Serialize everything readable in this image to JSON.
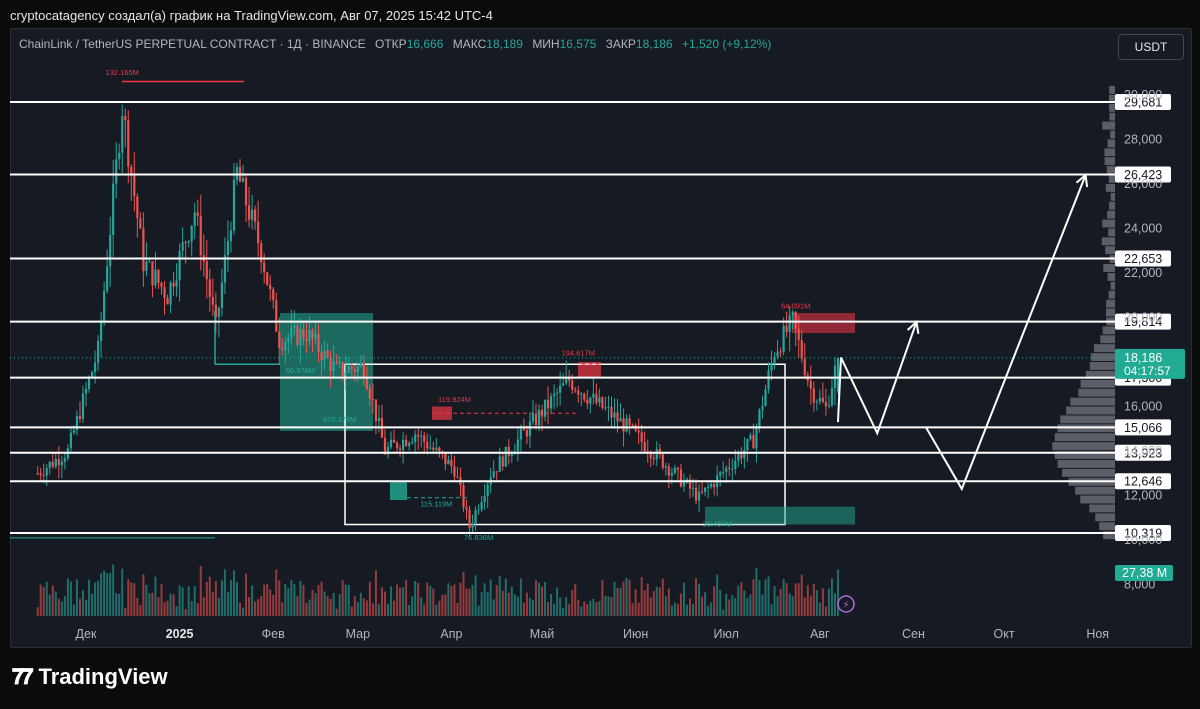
{
  "header": {
    "text": "cryptocatagency создал(а) график на TradingView.com, Авг 07, 2025 15:42 UTC-4"
  },
  "info": {
    "title": "ChainLink / TetherUS PERPETUAL CONTRACT · 1Д · BINANCE",
    "o_label": "ОТКР",
    "o_val": "16,666",
    "h_label": "МАКС",
    "h_val": "18,189",
    "l_label": "МИН",
    "l_val": "16,575",
    "c_label": "ЗАКР",
    "c_val": "18,186",
    "change": "+1,520 (+9,12%)"
  },
  "currency_button": "USDT",
  "brand": {
    "name": "TradingView"
  },
  "colors": {
    "up": "#26a69a",
    "down": "#ef5350",
    "bg": "#151a23",
    "line": "#ffffff",
    "zone_red": "#f23645",
    "zone_green": "#22ab94"
  },
  "chart_data": {
    "type": "candlestick",
    "symbol": "LINKUSDT.P",
    "timeframe": "1D",
    "y_axis_ticks": [
      "30,000",
      "28,000",
      "26,000",
      "24,000",
      "22,000",
      "20,000",
      "18,000",
      "16,000",
      "14,000",
      "12,000",
      "10,000",
      "8,000"
    ],
    "x_axis_ticks": [
      "Дек",
      "2025",
      "Фев",
      "Мар",
      "Апр",
      "Май",
      "Июн",
      "Июл",
      "Авг",
      "Сен",
      "Окт",
      "Ноя"
    ],
    "horizontal_levels": [
      29.681,
      26.423,
      22.653,
      19.814,
      17.3,
      15.066,
      13.923,
      12.646,
      10.319
    ],
    "level_labels": [
      "29,681",
      "26,423",
      "22,653",
      "19,814",
      "17,300",
      "15,066",
      "13,923",
      "12,646",
      "10,319"
    ],
    "last_price": {
      "value": 18.186,
      "label": "18,186",
      "countdown": "04:17:57"
    },
    "volume_last_label": "27,38 M",
    "volume_annotations": [
      "132.165M",
      "50.978M",
      "670.379M",
      "119.924M",
      "115.119M",
      "76.836M",
      "194.617M",
      "64.091M",
      "30.407M"
    ],
    "candles_approx": [
      {
        "month": "Nov 2024",
        "open": 12.8,
        "high": 14.5,
        "low": 12.2,
        "close": 13.9
      },
      {
        "month": "Dec 2024",
        "open": 13.9,
        "high": 30.5,
        "low": 13.8,
        "close": 22.6
      },
      {
        "month": "Jan 2025",
        "open": 22.6,
        "high": 26.9,
        "low": 17.8,
        "close": 21.5
      },
      {
        "month": "Feb 2025",
        "open": 21.5,
        "high": 23.8,
        "low": 15.5,
        "close": 17.0
      },
      {
        "month": "Mar 2025",
        "open": 17.0,
        "high": 17.3,
        "low": 12.6,
        "close": 13.7
      },
      {
        "month": "Apr 2025",
        "open": 13.7,
        "high": 16.0,
        "low": 10.0,
        "close": 14.5
      },
      {
        "month": "May 2025",
        "open": 14.5,
        "high": 17.9,
        "low": 13.5,
        "close": 15.2
      },
      {
        "month": "Jun 2025",
        "open": 15.2,
        "high": 16.6,
        "low": 11.9,
        "close": 13.4
      },
      {
        "month": "Jul 2025",
        "open": 13.4,
        "high": 19.8,
        "low": 13.0,
        "close": 17.6
      },
      {
        "month": "Aug 2025",
        "open": 17.6,
        "high": 18.19,
        "low": 15.5,
        "close": 18.186
      }
    ],
    "projection_path": [
      {
        "date": "2025-08-07",
        "price": 15.3
      },
      {
        "date": "2025-08-08",
        "price": 18.2
      },
      {
        "date": "2025-08-20",
        "price": 14.8
      },
      {
        "date": "2025-09-02",
        "price": 19.8
      },
      {
        "date": "2025-09-05",
        "price": 15.1
      },
      {
        "date": "2025-09-17",
        "price": 12.3
      },
      {
        "date": "2025-10-28",
        "price": 26.4
      }
    ],
    "ylim": [
      8,
      30.5
    ]
  }
}
